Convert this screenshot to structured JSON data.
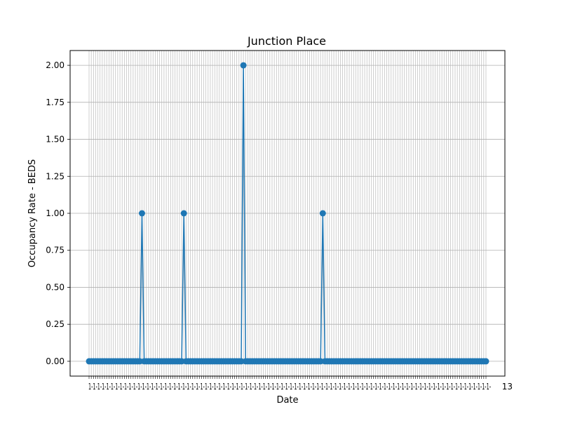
{
  "chart_data": {
    "type": "line",
    "title": "Junction Place",
    "xlabel": "Date",
    "ylabel": "Occupancy Rate - BEDS",
    "ylim": [
      -0.1,
      2.1
    ],
    "yticks": [
      "0.00",
      "0.25",
      "0.50",
      "0.75",
      "1.00",
      "1.25",
      "1.50",
      "1.75",
      "2.00"
    ],
    "grid": true,
    "legend": "none",
    "num_points": 181,
    "x_tick_labels_overlapping": true,
    "x_tick_label_pattern": "1‑",
    "x_tick_label_last": "13",
    "series": [
      {
        "color": "#1f77b4",
        "marker": "circle",
        "baseline_value": 0,
        "spikes": [
          {
            "index": 24,
            "value": 1
          },
          {
            "index": 43,
            "value": 1
          },
          {
            "index": 70,
            "value": 2
          },
          {
            "index": 106,
            "value": 1
          }
        ]
      }
    ]
  }
}
